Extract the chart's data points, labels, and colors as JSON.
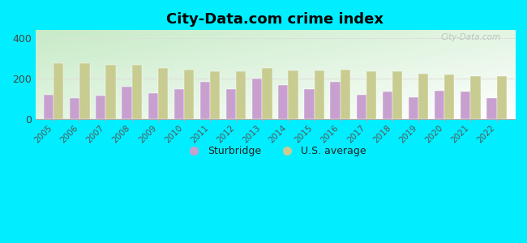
{
  "title": "City-Data.com crime index",
  "years": [
    2005,
    2006,
    2007,
    2008,
    2009,
    2010,
    2011,
    2012,
    2013,
    2014,
    2015,
    2016,
    2017,
    2018,
    2019,
    2020,
    2021,
    2022
  ],
  "sturbridge": [
    120,
    105,
    115,
    160,
    130,
    150,
    185,
    150,
    200,
    168,
    148,
    185,
    120,
    135,
    110,
    140,
    135,
    105
  ],
  "us_average": [
    278,
    278,
    270,
    268,
    252,
    246,
    238,
    235,
    252,
    242,
    242,
    245,
    238,
    238,
    225,
    220,
    213,
    213
  ],
  "sturbridge_color": "#c8a0d0",
  "us_avg_color": "#c8cc90",
  "background_color": "#00eeff",
  "title_fontsize": 13,
  "ylabel_fontsize": 9,
  "xlabel_fontsize": 7.5,
  "ylim": [
    0,
    440
  ],
  "yticks": [
    0,
    200,
    400
  ],
  "watermark": "City-Data.com",
  "legend_labels": [
    "Sturbridge",
    "U.S. average"
  ],
  "grid_color": "#dddddd",
  "bar_width": 0.38
}
